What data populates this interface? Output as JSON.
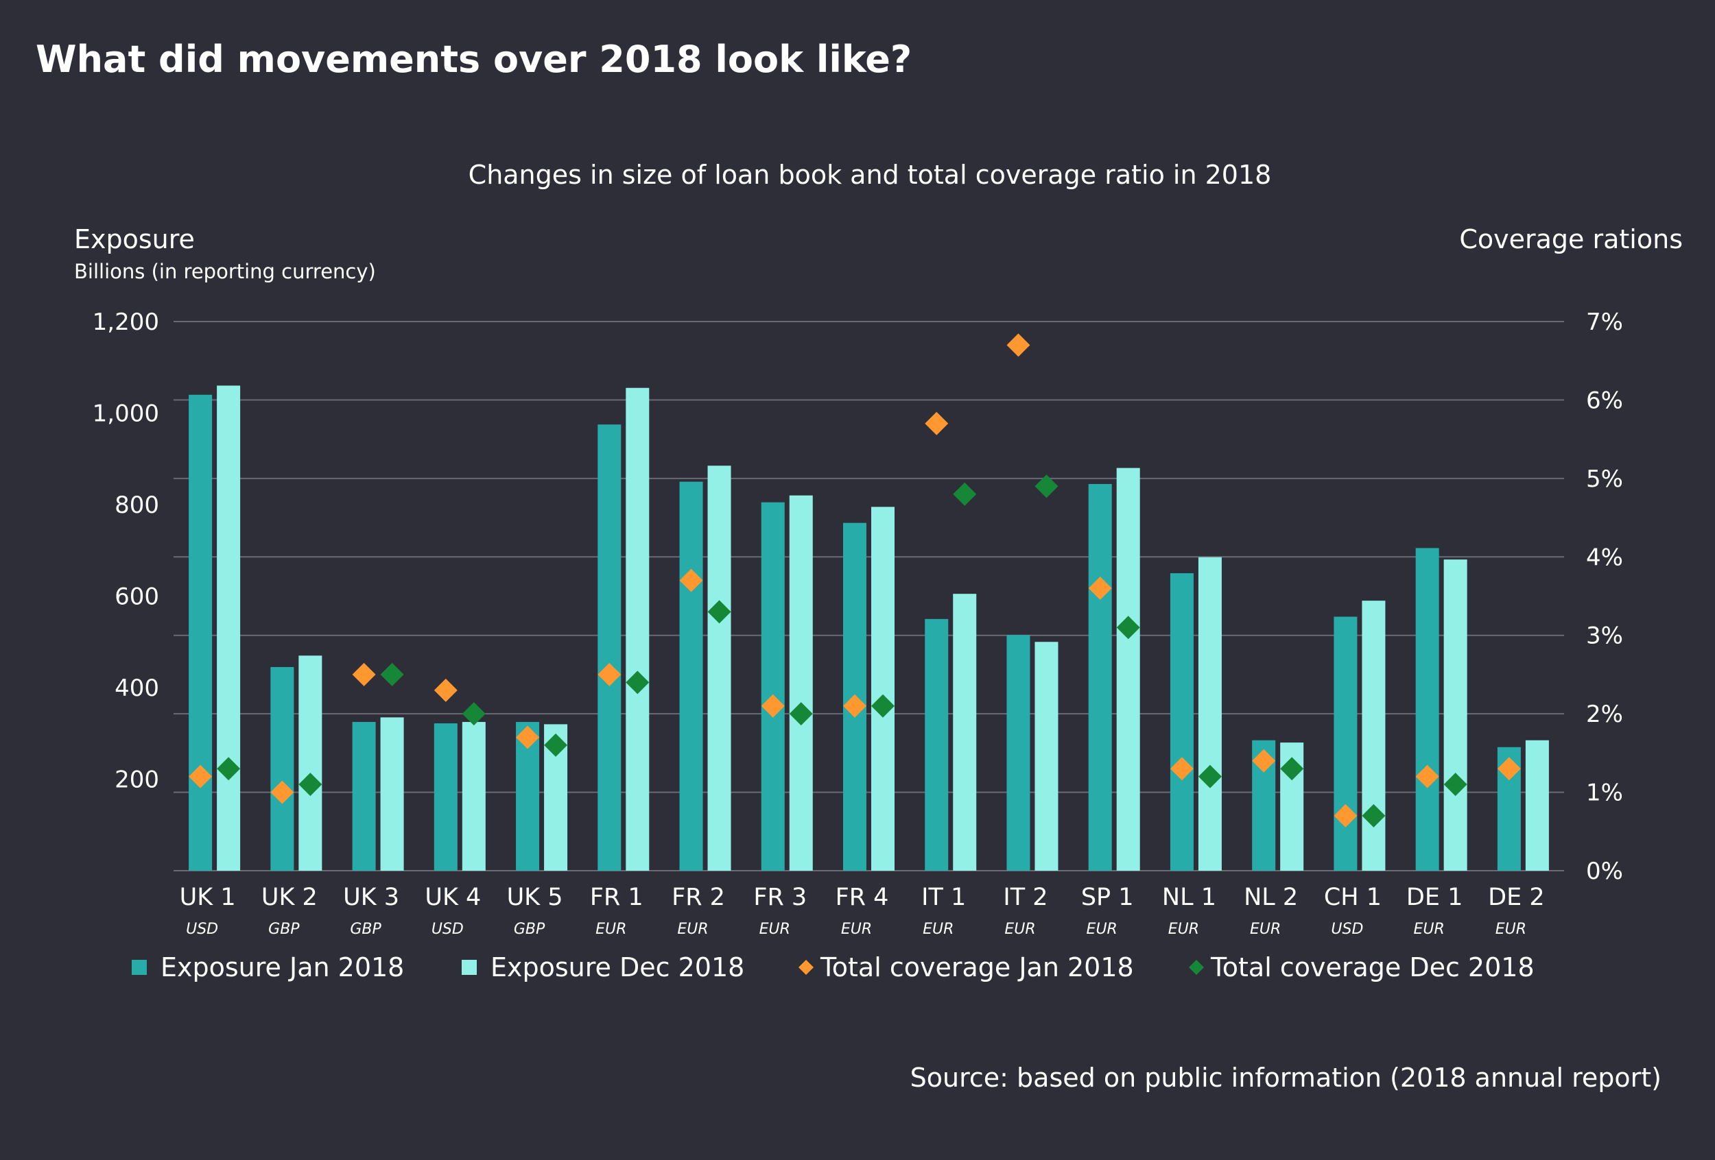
{
  "title": "What did movements over 2018 look like?",
  "source": "Source: based on public information (2018 annual report)",
  "colors": {
    "background": "#2e2e38",
    "exposure_jan": "#27acaa",
    "exposure_dec": "#93f0e6",
    "coverage_jan": "#ff9831",
    "coverage_dec": "#168736"
  },
  "chart_data": {
    "type": "bar",
    "title": "Changes in size of loan book and total coverage ratio in 2018",
    "ylabel": "Exposure",
    "ylabel_sub": "Billions (in reporting currency)",
    "y2label": "Coverage rations",
    "ylim": [
      0,
      1200
    ],
    "y2lim": [
      0,
      7
    ],
    "yticks": [
      "200",
      "400",
      "600",
      "800",
      "1,000",
      "1,200"
    ],
    "y2ticks": [
      "0%",
      "1%",
      "2%",
      "3%",
      "4%",
      "5%",
      "6%",
      "7%"
    ],
    "grid": true,
    "legend_position": "bottom",
    "categories": [
      "UK 1",
      "UK 2",
      "UK 3",
      "UK 4",
      "UK 5",
      "FR 1",
      "FR 2",
      "FR 3",
      "FR 4",
      "IT 1",
      "IT 2",
      "SP 1",
      "NL 1",
      "NL 2",
      "CH 1",
      "DE 1",
      "DE 2"
    ],
    "currencies": [
      "USD",
      "GBP",
      "GBP",
      "USD",
      "GBP",
      "EUR",
      "EUR",
      "EUR",
      "EUR",
      "EUR",
      "EUR",
      "EUR",
      "EUR",
      "EUR",
      "USD",
      "EUR",
      "EUR"
    ],
    "series": [
      {
        "name": "Exposure Jan 2018",
        "type": "bar",
        "axis": "left",
        "values": [
          1040,
          445,
          325,
          322,
          325,
          975,
          850,
          805,
          760,
          550,
          515,
          845,
          650,
          285,
          555,
          705,
          270
        ]
      },
      {
        "name": "Exposure Dec 2018",
        "type": "bar",
        "axis": "left",
        "values": [
          1060,
          470,
          335,
          325,
          320,
          1055,
          885,
          820,
          795,
          605,
          500,
          880,
          685,
          280,
          590,
          680,
          285
        ]
      },
      {
        "name": "Total coverage Jan 2018",
        "type": "scatter",
        "axis": "right",
        "values": [
          1.2,
          1.0,
          2.5,
          2.3,
          1.7,
          2.5,
          3.7,
          2.1,
          2.1,
          5.7,
          6.7,
          3.6,
          1.3,
          1.4,
          0.7,
          1.2,
          1.3
        ]
      },
      {
        "name": "Total coverage Dec 2018",
        "type": "scatter",
        "axis": "right",
        "values": [
          1.3,
          1.1,
          2.5,
          2.0,
          1.6,
          2.4,
          3.3,
          2.0,
          2.1,
          4.8,
          4.9,
          3.1,
          1.2,
          1.3,
          0.7,
          1.1,
          null
        ]
      }
    ]
  }
}
